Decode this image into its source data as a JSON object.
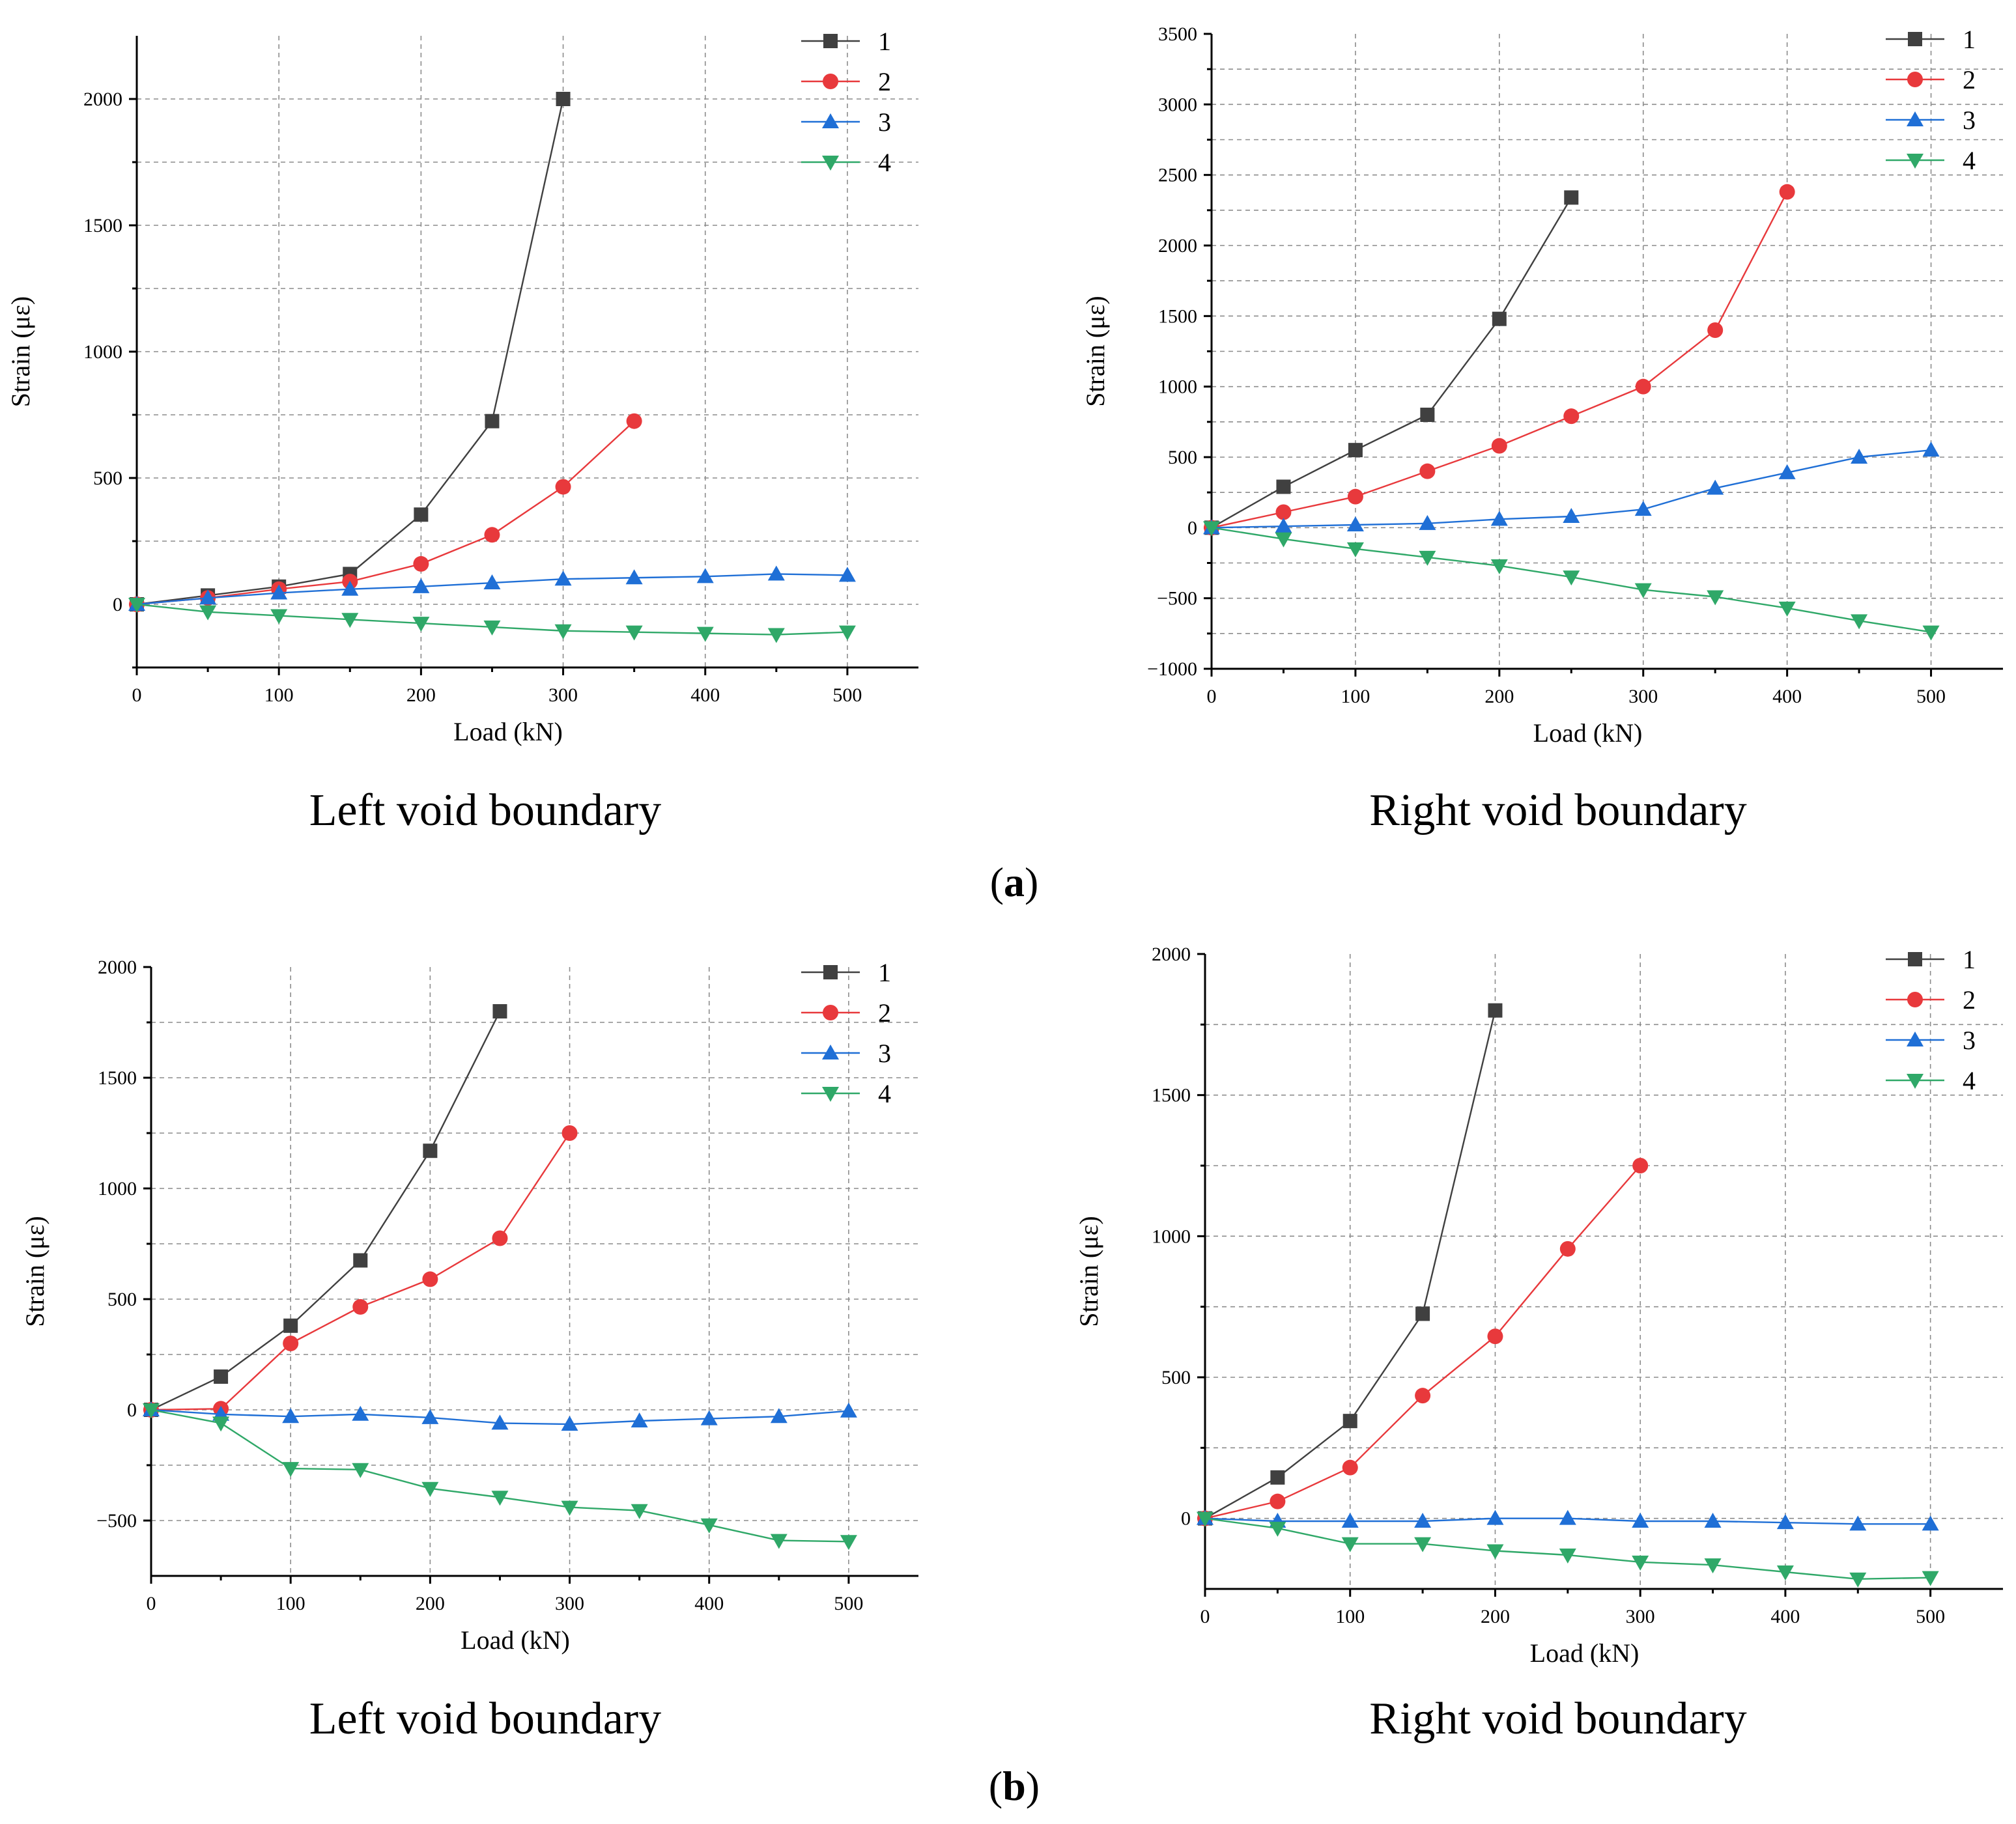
{
  "figure_labels": {
    "a_open": "(",
    "a_letter": "a",
    "a_close": ")",
    "b_open": "(",
    "b_letter": "b",
    "b_close": ")"
  },
  "series_styles": [
    {
      "name": "1",
      "color": "#404040",
      "marker": "square"
    },
    {
      "name": "2",
      "color": "#e8393c",
      "marker": "circle"
    },
    {
      "name": "3",
      "color": "#1f6fd6",
      "marker": "triangle-up"
    },
    {
      "name": "4",
      "color": "#2fa868",
      "marker": "triangle-down"
    }
  ],
  "chart_data": [
    {
      "id": "a-left",
      "type": "line",
      "title": "Left void boundary",
      "xlabel": "Load (kN)",
      "ylabel": "Strain (με)",
      "xlim": [
        0,
        550
      ],
      "ylim": [
        -250,
        2250
      ],
      "xticks": [
        0,
        100,
        200,
        300,
        400,
        500
      ],
      "yticks": [
        0,
        500,
        1000,
        1500,
        2000
      ],
      "ygrid": [
        -250,
        0,
        250,
        500,
        750,
        1000,
        1250,
        1500,
        1750,
        2000
      ],
      "legend": "top-right",
      "series": [
        {
          "name": "1",
          "x": [
            0,
            50,
            100,
            150,
            200,
            250,
            300
          ],
          "y": [
            0,
            35,
            70,
            120,
            355,
            725,
            2000
          ]
        },
        {
          "name": "2",
          "x": [
            0,
            50,
            100,
            150,
            200,
            250,
            300,
            350
          ],
          "y": [
            0,
            25,
            60,
            90,
            160,
            275,
            465,
            725
          ]
        },
        {
          "name": "3",
          "x": [
            0,
            50,
            100,
            150,
            200,
            250,
            300,
            350,
            400,
            450,
            500
          ],
          "y": [
            0,
            25,
            45,
            60,
            70,
            85,
            100,
            105,
            110,
            120,
            115
          ]
        },
        {
          "name": "4",
          "x": [
            0,
            50,
            100,
            150,
            200,
            250,
            300,
            350,
            400,
            450,
            500
          ],
          "y": [
            0,
            -30,
            -45,
            -60,
            -75,
            -90,
            -105,
            -110,
            -115,
            -120,
            -110
          ]
        }
      ]
    },
    {
      "id": "a-right",
      "type": "line",
      "title": "Right void boundary",
      "xlabel": "Load (kN)",
      "ylabel": "Strain (με)",
      "xlim": [
        0,
        550
      ],
      "ylim": [
        -1000,
        3500
      ],
      "xticks": [
        0,
        100,
        200,
        300,
        400,
        500
      ],
      "yticks": [
        -1000,
        -500,
        0,
        500,
        1000,
        1500,
        2000,
        2500,
        3000,
        3500
      ],
      "ygrid": [
        -750,
        -500,
        -250,
        0,
        250,
        500,
        750,
        1000,
        1250,
        1500,
        1750,
        2000,
        2250,
        2500,
        2750,
        3000,
        3250
      ],
      "legend": "top-right",
      "series": [
        {
          "name": "1",
          "x": [
            0,
            50,
            100,
            150,
            200,
            250
          ],
          "y": [
            0,
            290,
            550,
            800,
            1480,
            2340
          ]
        },
        {
          "name": "2",
          "x": [
            0,
            50,
            100,
            150,
            200,
            250,
            300,
            350,
            400
          ],
          "y": [
            0,
            110,
            220,
            400,
            580,
            790,
            1000,
            1400,
            2380
          ]
        },
        {
          "name": "3",
          "x": [
            0,
            50,
            100,
            150,
            200,
            250,
            300,
            350,
            400,
            450,
            500
          ],
          "y": [
            0,
            10,
            20,
            30,
            60,
            80,
            130,
            280,
            390,
            500,
            550
          ]
        },
        {
          "name": "4",
          "x": [
            0,
            50,
            100,
            150,
            200,
            250,
            300,
            350,
            400,
            450,
            500
          ],
          "y": [
            0,
            -80,
            -150,
            -210,
            -270,
            -350,
            -440,
            -490,
            -570,
            -660,
            -740
          ]
        }
      ]
    },
    {
      "id": "b-left",
      "type": "line",
      "title": "Left void boundary",
      "xlabel": "Load (kN)",
      "ylabel": "Strain (με)",
      "xlim": [
        0,
        550
      ],
      "ylim": [
        -750,
        2000
      ],
      "xticks": [
        0,
        100,
        200,
        300,
        400,
        500
      ],
      "yticks": [
        -500,
        0,
        500,
        1000,
        1500,
        2000
      ],
      "ygrid": [
        -500,
        -250,
        0,
        250,
        500,
        750,
        1000,
        1250,
        1500,
        1750
      ],
      "legend": "top-right",
      "series": [
        {
          "name": "1",
          "x": [
            0,
            50,
            100,
            150,
            200,
            250
          ],
          "y": [
            0,
            150,
            380,
            675,
            1170,
            1800
          ]
        },
        {
          "name": "2",
          "x": [
            0,
            50,
            100,
            150,
            200,
            250,
            300
          ],
          "y": [
            0,
            5,
            300,
            465,
            590,
            775,
            1250
          ]
        },
        {
          "name": "3",
          "x": [
            0,
            50,
            100,
            150,
            200,
            250,
            300,
            350,
            400,
            450,
            500
          ],
          "y": [
            0,
            -20,
            -30,
            -20,
            -35,
            -60,
            -65,
            -50,
            -40,
            -30,
            -5
          ]
        },
        {
          "name": "4",
          "x": [
            0,
            50,
            100,
            150,
            200,
            250,
            300,
            350,
            400,
            450,
            500
          ],
          "y": [
            0,
            -60,
            -265,
            -270,
            -355,
            -395,
            -440,
            -455,
            -520,
            -590,
            -595
          ]
        }
      ]
    },
    {
      "id": "b-right",
      "type": "line",
      "title": "Right void boundary",
      "xlabel": "Load (kN)",
      "ylabel": "Strain (με)",
      "xlim": [
        0,
        550
      ],
      "ylim": [
        -250,
        2000
      ],
      "xticks": [
        0,
        100,
        200,
        300,
        400,
        500
      ],
      "yticks": [
        0,
        500,
        1000,
        1500,
        2000
      ],
      "ygrid": [
        0,
        250,
        500,
        750,
        1000,
        1250,
        1500,
        1750
      ],
      "legend": "top-right",
      "series": [
        {
          "name": "1",
          "x": [
            0,
            50,
            100,
            150,
            200
          ],
          "y": [
            0,
            145,
            345,
            725,
            1800
          ]
        },
        {
          "name": "2",
          "x": [
            0,
            50,
            100,
            150,
            200,
            250,
            300
          ],
          "y": [
            0,
            60,
            180,
            435,
            645,
            955,
            1250
          ]
        },
        {
          "name": "3",
          "x": [
            0,
            50,
            100,
            150,
            200,
            250,
            300,
            350,
            400,
            450,
            500
          ],
          "y": [
            0,
            -10,
            -10,
            -10,
            0,
            0,
            -10,
            -10,
            -15,
            -20,
            -20
          ]
        },
        {
          "name": "4",
          "x": [
            0,
            50,
            100,
            150,
            200,
            250,
            300,
            350,
            400,
            450,
            500
          ],
          "y": [
            0,
            -35,
            -90,
            -90,
            -115,
            -130,
            -155,
            -165,
            -190,
            -215,
            -210
          ]
        }
      ]
    }
  ]
}
